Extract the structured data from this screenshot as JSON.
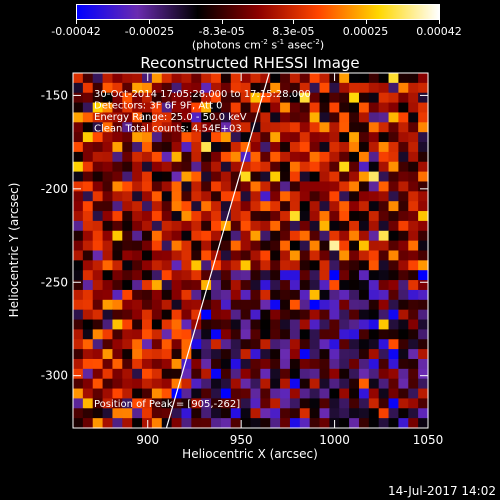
{
  "colorbar": {
    "tick_labels": [
      "-0.00042",
      "-0.00025",
      "-8.3e-05",
      "8.3e-05",
      "0.00025",
      "0.00042"
    ],
    "tick_values": [
      -0.00042,
      -0.00025,
      -8.3e-05,
      8.3e-05,
      0.00025,
      0.00042
    ],
    "range": [
      -0.00042,
      0.00042
    ],
    "units_main": "(photons cm",
    "units_sup1": "-2",
    "units_mid1": " s",
    "units_sup2": "-1",
    "units_mid2": " asec",
    "units_sup3": "-2",
    "units_end": ")",
    "colors": [
      "#0000ff",
      "#6a2bb0",
      "#000000",
      "#8b0000",
      "#ff4500",
      "#ffd700",
      "#ffffff"
    ]
  },
  "footer": {
    "date": "14-Jul-2017 14:02"
  },
  "chart_data": {
    "type": "heatmap",
    "title": "Reconstructed RHESSI Image",
    "xlabel": "Heliocentric X (arcsec)",
    "ylabel": "Heliocentric Y (arcsec)",
    "xlim": [
      860,
      1050
    ],
    "ylim": [
      -328,
      -138
    ],
    "x_ticks": [
      900,
      950,
      1000,
      1050
    ],
    "y_ticks": [
      -150,
      -200,
      -250,
      -300
    ],
    "annotations": [
      "30-Oct-2014 17:05:28.000 to 17:15:28.000",
      "Detectors: 3F 6F 9F, Att 0",
      "Energy Range: 25.0 - 50.0 keV",
      "Clean     Total counts: 4.54E+03"
    ],
    "peak_label": "Position of Peak = [905,-262]",
    "peak": [
      905,
      -262
    ],
    "limb_line": [
      [
        910,
        -328
      ],
      [
        965,
        -138
      ]
    ],
    "grid": false
  }
}
